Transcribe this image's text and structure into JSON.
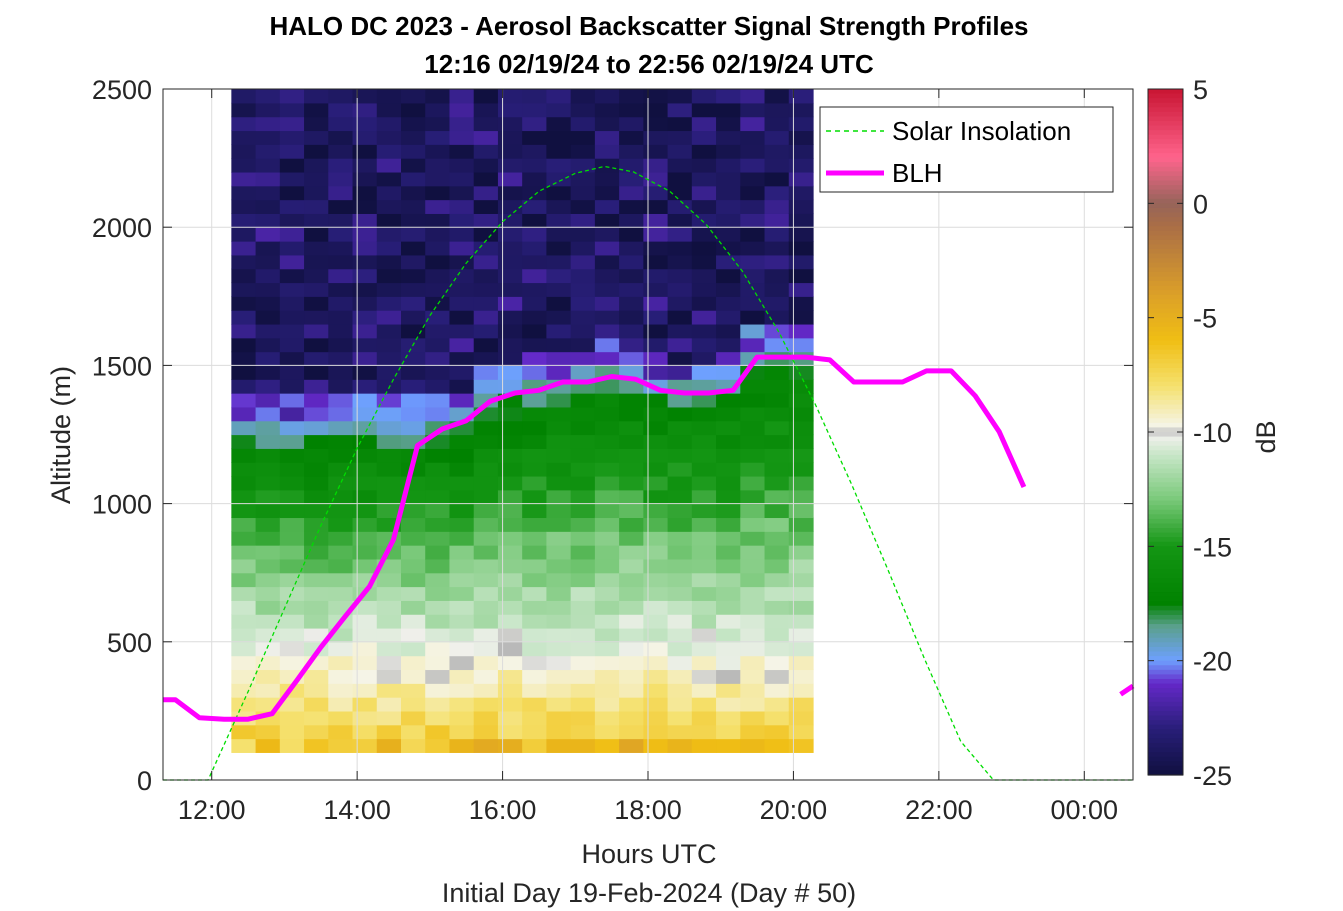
{
  "chart_data": {
    "type": "heatmap",
    "title": "HALO DC 2023 - Aerosol Backscatter Signal Strength Profiles",
    "subtitle": "12:16 02/19/24 to 22:56 02/19/24  UTC",
    "xlabel": "Hours UTC",
    "footer": "Initial Day 19-Feb-2024 (Day # 50)",
    "ylabel": "Altitude (m)",
    "colorbar_label": "dB",
    "xlim": [
      11.33,
      24.67
    ],
    "ylim": [
      0,
      2500
    ],
    "x_ticks": [
      {
        "value": 12,
        "label": "12:00"
      },
      {
        "value": 14,
        "label": "14:00"
      },
      {
        "value": 16,
        "label": "16:00"
      },
      {
        "value": 18,
        "label": "18:00"
      },
      {
        "value": 20,
        "label": "20:00"
      },
      {
        "value": 22,
        "label": "22:00"
      },
      {
        "value": 24,
        "label": "00:00"
      }
    ],
    "y_ticks": [
      {
        "value": 0,
        "label": "0"
      },
      {
        "value": 500,
        "label": "500"
      },
      {
        "value": 1000,
        "label": "1000"
      },
      {
        "value": 1500,
        "label": "1500"
      },
      {
        "value": 2000,
        "label": "2000"
      },
      {
        "value": 2500,
        "label": "2500"
      }
    ],
    "colorbar_ticks": [
      {
        "value": 5,
        "label": "5"
      },
      {
        "value": 0,
        "label": "0"
      },
      {
        "value": -5,
        "label": "-5"
      },
      {
        "value": -10,
        "label": "-10"
      },
      {
        "value": -15,
        "label": "-15"
      },
      {
        "value": -20,
        "label": "-20"
      },
      {
        "value": -25,
        "label": "-25"
      }
    ],
    "clim": [
      -25,
      5
    ],
    "grid": true,
    "legend_position": "top-right",
    "heatmap": {
      "x_start": 12.27,
      "x_step": 0.3333,
      "columns": 24,
      "y_start": 100,
      "y_step": 50,
      "rows": 48,
      "units": "dB"
    },
    "series": [
      {
        "name": "Solar Insolation",
        "style": "dashed",
        "color": "#00dd00",
        "x": [
          11.33,
          11.95,
          12.5,
          13.0,
          13.5,
          14.0,
          14.5,
          15.0,
          15.5,
          16.0,
          16.5,
          17.0,
          17.4,
          17.8,
          18.3,
          18.8,
          19.3,
          19.8,
          20.3,
          20.8,
          21.3,
          21.8,
          22.3,
          22.75,
          23.5,
          24.67
        ],
        "y": [
          0,
          0,
          320,
          620,
          920,
          1200,
          1450,
          1680,
          1870,
          2020,
          2130,
          2195,
          2220,
          2200,
          2130,
          2010,
          1840,
          1620,
          1360,
          1070,
          760,
          440,
          140,
          0,
          0,
          0
        ]
      },
      {
        "name": "BLH",
        "style": "solid",
        "color": "#ff00ff",
        "segments": [
          {
            "x": [
              11.33,
              11.5,
              11.83,
              12.17,
              12.5,
              12.83,
              13.17,
              13.5,
              13.83,
              14.17,
              14.5,
              14.83,
              15.17,
              15.5,
              15.83,
              16.17,
              16.5,
              16.83,
              17.17,
              17.5,
              17.83,
              18.17,
              18.5,
              18.83,
              19.17,
              19.5,
              19.83,
              20.17,
              20.5,
              20.83,
              21.17,
              21.5,
              21.83,
              22.17,
              22.5,
              22.83,
              23.17
            ],
            "y": [
              290,
              290,
              225,
              220,
              220,
              240,
              360,
              480,
              590,
              700,
              870,
              1210,
              1270,
              1300,
              1370,
              1400,
              1410,
              1440,
              1440,
              1460,
              1450,
              1410,
              1400,
              1400,
              1410,
              1530,
              1530,
              1530,
              1520,
              1440,
              1440,
              1440,
              1480,
              1480,
              1390,
              1260,
              1060
            ]
          },
          {
            "x": [
              24.5,
              24.67
            ],
            "y": [
              310,
              340
            ]
          }
        ]
      }
    ]
  }
}
